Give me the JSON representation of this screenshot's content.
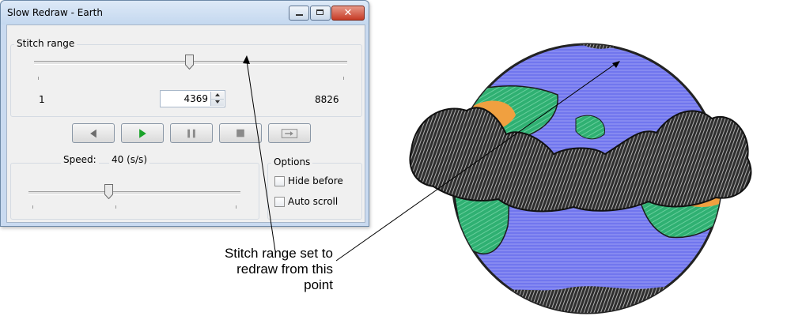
{
  "window": {
    "title": "Slow Redraw - Earth",
    "caption_icons": [
      "minimize-icon",
      "maximize-icon",
      "close-icon"
    ]
  },
  "stitch_range": {
    "label": "Stitch range",
    "min": "1",
    "max": "8826",
    "value": "4369",
    "slider_fraction": 0.495
  },
  "playback": {
    "buttons": [
      "step-back-icon",
      "play-icon",
      "pause-icon",
      "stop-icon",
      "step-forward-icon"
    ]
  },
  "speed": {
    "label": "Speed:",
    "value": "40 (s/s)",
    "slider_fraction": 0.38
  },
  "options": {
    "label": "Options",
    "hide_before": "Hide before",
    "auto_scroll": "Auto scroll"
  },
  "callout": {
    "lines": [
      "Stitch range set to",
      "redraw from this",
      "point"
    ]
  },
  "colors": {
    "play_green": "#19a329",
    "ocean": "#7176ee",
    "land": "#2fb072",
    "desert": "#f0a040",
    "cloud": "#3a3a3a"
  }
}
